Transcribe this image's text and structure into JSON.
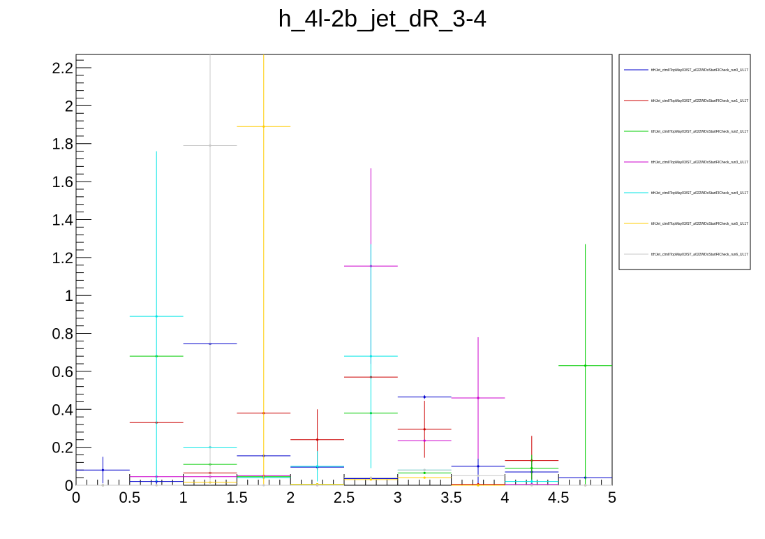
{
  "chart_data": {
    "type": "scatter",
    "title": "h_4l-2b_jet_dR_3-4",
    "xlabel": "",
    "ylabel": "",
    "xlim": [
      0,
      5
    ],
    "ylim": [
      0,
      2.27
    ],
    "x_ticks": [
      "0",
      "0.5",
      "1",
      "1.5",
      "2",
      "2.5",
      "3",
      "3.5",
      "4",
      "4.5",
      "5"
    ],
    "y_ticks": [
      "0",
      "0.2",
      "0.4",
      "0.6",
      "0.8",
      "1",
      "1.2",
      "1.4",
      "1.6",
      "1.8",
      "2",
      "2.2"
    ],
    "bin_edges": [
      0,
      0.5,
      1,
      1.5,
      2,
      2.5,
      3,
      3.5,
      4,
      4.5,
      5
    ],
    "legend_position": "top-right",
    "series": [
      {
        "name": "ttHJet_ctmIITopMay03/ST_a022WDxStartFICheck_run0_UL17",
        "color": "#0000cc",
        "values": [
          0.08,
          0.02,
          0.745,
          0.155,
          0.095,
          0.035,
          0.465,
          0.1,
          0.07,
          0.04
        ],
        "errors": [
          0.07,
          0.015,
          0.01,
          0.005,
          0.005,
          0.005,
          0.01,
          0.09,
          0.07,
          0.01
        ]
      },
      {
        "name": "ttHJet_ctmIITopMay03/ST_a022WDxStartFICheck_run1_UL17",
        "color": "#cc0000",
        "values": [
          0.0,
          0.33,
          0.065,
          0.38,
          0.24,
          0.57,
          0.295,
          0.005,
          0.13,
          0.0
        ],
        "errors": [
          0.0,
          0.005,
          0.005,
          0.005,
          0.16,
          0.005,
          0.15,
          0.005,
          0.13,
          0.0
        ]
      },
      {
        "name": "ttHJet_ctmIITopMay03/ST_a022WDxStartFICheck_run2_UL17",
        "color": "#00cc00",
        "values": [
          0.0,
          0.68,
          0.11,
          0.045,
          0.005,
          0.38,
          0.065,
          0.0,
          0.09,
          0.63
        ],
        "errors": [
          0.0,
          0.005,
          0.005,
          0.005,
          0.005,
          0.005,
          0.005,
          0.0,
          0.07,
          0.64
        ]
      },
      {
        "name": "ttHJet_ctmIITopMay03/ST_a022WDxStartFICheck_run3_UL17",
        "color": "#cc00cc",
        "values": [
          0.0,
          0.045,
          0.045,
          0.05,
          0.0,
          1.155,
          0.235,
          0.46,
          0.005,
          0.0
        ],
        "errors": [
          0.0,
          0.005,
          0.005,
          0.005,
          0.0,
          0.515,
          0.005,
          0.32,
          0.005,
          0.0
        ]
      },
      {
        "name": "ttHJet_ctmIITopMay03/ST_a022WDxStartFICheck_run4_UL17",
        "color": "#00e5e5",
        "values": [
          0.0,
          0.89,
          0.2,
          0.04,
          0.1,
          0.68,
          0.08,
          0.0,
          0.02,
          0.0
        ],
        "errors": [
          0.0,
          0.87,
          0.005,
          0.005,
          0.08,
          0.59,
          0.005,
          0.0,
          0.01,
          0.0
        ]
      },
      {
        "name": "ttHJet_ctmIITopMay03/ST_a022WDxStartFICheck_run5_UL17",
        "color": "#ffcc00",
        "values": [
          0.0,
          0.0,
          0.015,
          1.89,
          0.005,
          0.03,
          0.04,
          0.0,
          0.0,
          0.0
        ],
        "errors": [
          0.0,
          0.0,
          0.005,
          1.89,
          0.005,
          0.005,
          0.005,
          0.0,
          0.0,
          0.0
        ]
      },
      {
        "name": "ttHJet_ctmIITopMay03/ST_a022WDxStartFICheck_run6_UL17",
        "color": "#c8c8c8",
        "values": [
          0.0,
          0.0,
          1.79,
          0.0,
          0.0,
          0.04,
          0.08,
          0.05,
          0.0,
          0.0
        ],
        "errors": [
          0.0,
          0.0,
          1.79,
          0.0,
          0.0,
          0.005,
          0.005,
          0.005,
          0.0,
          0.0
        ]
      }
    ]
  }
}
